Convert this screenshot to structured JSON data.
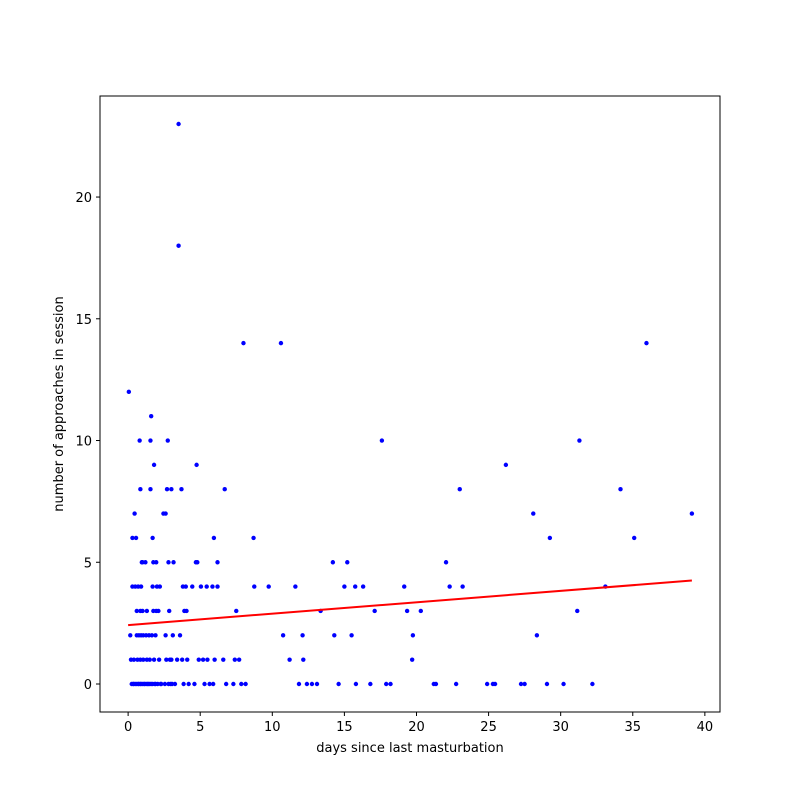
{
  "chart_data": {
    "type": "scatter",
    "title": "",
    "xlabel": "days since last masturbation",
    "ylabel": "number of approaches in session",
    "xlim": [
      -1.95,
      41.05
    ],
    "ylim": [
      -1.15,
      24.15
    ],
    "xticks": [
      0,
      5,
      10,
      15,
      20,
      25,
      30,
      35,
      40
    ],
    "yticks": [
      0,
      5,
      10,
      15,
      20
    ],
    "grid": false,
    "legend": "none",
    "colors": {
      "points": "#0000ff",
      "fit_line": "#ff0000",
      "frame": "#000000"
    },
    "points": [
      [
        0.05,
        12
      ],
      [
        0.15,
        2
      ],
      [
        0.2,
        1
      ],
      [
        0.25,
        0
      ],
      [
        0.3,
        4
      ],
      [
        0.3,
        6
      ],
      [
        0.35,
        0
      ],
      [
        0.4,
        0
      ],
      [
        0.4,
        1
      ],
      [
        0.45,
        7
      ],
      [
        0.5,
        0
      ],
      [
        0.5,
        4
      ],
      [
        0.55,
        6
      ],
      [
        0.6,
        0
      ],
      [
        0.6,
        2
      ],
      [
        0.6,
        3
      ],
      [
        0.65,
        1
      ],
      [
        0.7,
        0
      ],
      [
        0.7,
        4
      ],
      [
        0.75,
        0
      ],
      [
        0.75,
        2
      ],
      [
        0.8,
        10
      ],
      [
        0.85,
        0
      ],
      [
        0.85,
        1
      ],
      [
        0.85,
        3
      ],
      [
        0.85,
        8
      ],
      [
        0.9,
        0
      ],
      [
        0.9,
        2
      ],
      [
        0.9,
        4
      ],
      [
        0.95,
        5
      ],
      [
        1.0,
        0
      ],
      [
        1.0,
        3
      ],
      [
        1.0,
        5
      ],
      [
        1.05,
        1
      ],
      [
        1.05,
        2
      ],
      [
        1.1,
        0
      ],
      [
        1.15,
        0
      ],
      [
        1.2,
        5
      ],
      [
        1.25,
        0
      ],
      [
        1.25,
        2
      ],
      [
        1.3,
        1
      ],
      [
        1.3,
        3
      ],
      [
        1.35,
        0
      ],
      [
        1.4,
        0
      ],
      [
        1.45,
        2
      ],
      [
        1.5,
        0
      ],
      [
        1.5,
        1
      ],
      [
        1.55,
        8
      ],
      [
        1.55,
        10
      ],
      [
        1.6,
        11
      ],
      [
        1.6,
        0
      ],
      [
        1.65,
        2
      ],
      [
        1.7,
        4
      ],
      [
        1.7,
        6
      ],
      [
        1.7,
        0
      ],
      [
        1.75,
        3
      ],
      [
        1.75,
        5
      ],
      [
        1.8,
        1
      ],
      [
        1.8,
        9
      ],
      [
        1.85,
        0
      ],
      [
        1.9,
        0
      ],
      [
        1.9,
        2
      ],
      [
        1.95,
        3
      ],
      [
        1.95,
        5
      ],
      [
        2.0,
        4
      ],
      [
        2.05,
        0
      ],
      [
        2.1,
        3
      ],
      [
        2.15,
        1
      ],
      [
        2.2,
        4
      ],
      [
        2.25,
        0
      ],
      [
        2.3,
        0
      ],
      [
        2.45,
        7
      ],
      [
        2.55,
        0
      ],
      [
        2.6,
        7
      ],
      [
        2.6,
        2
      ],
      [
        2.65,
        1
      ],
      [
        2.7,
        8
      ],
      [
        2.75,
        10
      ],
      [
        2.8,
        5
      ],
      [
        2.8,
        0
      ],
      [
        2.85,
        3
      ],
      [
        2.9,
        1
      ],
      [
        2.95,
        0
      ],
      [
        3.0,
        8
      ],
      [
        3.0,
        1
      ],
      [
        3.05,
        0
      ],
      [
        3.1,
        2
      ],
      [
        3.15,
        5
      ],
      [
        3.25,
        0
      ],
      [
        3.4,
        1
      ],
      [
        3.5,
        23
      ],
      [
        3.5,
        18
      ],
      [
        3.6,
        2
      ],
      [
        3.7,
        8
      ],
      [
        3.75,
        1
      ],
      [
        3.8,
        4
      ],
      [
        3.85,
        0
      ],
      [
        3.9,
        3
      ],
      [
        4.0,
        4
      ],
      [
        4.05,
        3
      ],
      [
        4.1,
        1
      ],
      [
        4.2,
        0
      ],
      [
        4.45,
        4
      ],
      [
        4.6,
        0
      ],
      [
        4.7,
        5
      ],
      [
        4.75,
        9
      ],
      [
        4.8,
        5
      ],
      [
        4.9,
        1
      ],
      [
        5.05,
        4
      ],
      [
        5.2,
        1
      ],
      [
        5.3,
        0
      ],
      [
        5.45,
        4
      ],
      [
        5.5,
        1
      ],
      [
        5.65,
        0
      ],
      [
        5.85,
        4
      ],
      [
        5.9,
        0
      ],
      [
        5.95,
        6
      ],
      [
        6.0,
        1
      ],
      [
        6.2,
        5
      ],
      [
        6.2,
        4
      ],
      [
        6.6,
        1
      ],
      [
        6.7,
        8
      ],
      [
        6.8,
        0
      ],
      [
        7.3,
        0
      ],
      [
        7.4,
        1
      ],
      [
        7.5,
        3
      ],
      [
        7.7,
        1
      ],
      [
        7.85,
        0
      ],
      [
        8.0,
        14
      ],
      [
        8.15,
        0
      ],
      [
        8.7,
        6
      ],
      [
        8.75,
        4
      ],
      [
        9.75,
        4
      ],
      [
        10.6,
        14
      ],
      [
        10.75,
        2
      ],
      [
        11.2,
        1
      ],
      [
        11.6,
        4
      ],
      [
        11.85,
        0
      ],
      [
        12.1,
        2
      ],
      [
        12.15,
        1
      ],
      [
        12.4,
        0
      ],
      [
        12.75,
        0
      ],
      [
        13.1,
        0
      ],
      [
        13.35,
        3
      ],
      [
        14.2,
        5
      ],
      [
        14.3,
        2
      ],
      [
        14.6,
        0
      ],
      [
        15.0,
        4
      ],
      [
        15.2,
        5
      ],
      [
        15.5,
        2
      ],
      [
        15.75,
        4
      ],
      [
        15.8,
        0
      ],
      [
        16.3,
        4
      ],
      [
        16.8,
        0
      ],
      [
        17.1,
        3
      ],
      [
        17.6,
        10
      ],
      [
        17.9,
        0
      ],
      [
        18.2,
        0
      ],
      [
        19.15,
        4
      ],
      [
        19.35,
        3
      ],
      [
        19.7,
        1
      ],
      [
        19.75,
        2
      ],
      [
        20.3,
        3
      ],
      [
        21.2,
        0
      ],
      [
        21.35,
        0
      ],
      [
        22.05,
        5
      ],
      [
        22.3,
        4
      ],
      [
        22.75,
        0
      ],
      [
        23.0,
        8
      ],
      [
        23.2,
        4
      ],
      [
        24.9,
        0
      ],
      [
        25.3,
        0
      ],
      [
        25.45,
        0
      ],
      [
        26.2,
        9
      ],
      [
        27.25,
        0
      ],
      [
        27.5,
        0
      ],
      [
        28.1,
        7
      ],
      [
        28.35,
        2
      ],
      [
        29.05,
        0
      ],
      [
        29.25,
        6
      ],
      [
        30.2,
        0
      ],
      [
        31.15,
        3
      ],
      [
        31.3,
        10
      ],
      [
        32.2,
        0
      ],
      [
        33.1,
        4
      ],
      [
        34.15,
        8
      ],
      [
        35.1,
        6
      ],
      [
        35.95,
        14
      ],
      [
        39.1,
        7
      ]
    ],
    "fit_line": {
      "x": [
        0,
        39.1
      ],
      "y": [
        2.42,
        4.25
      ]
    }
  }
}
